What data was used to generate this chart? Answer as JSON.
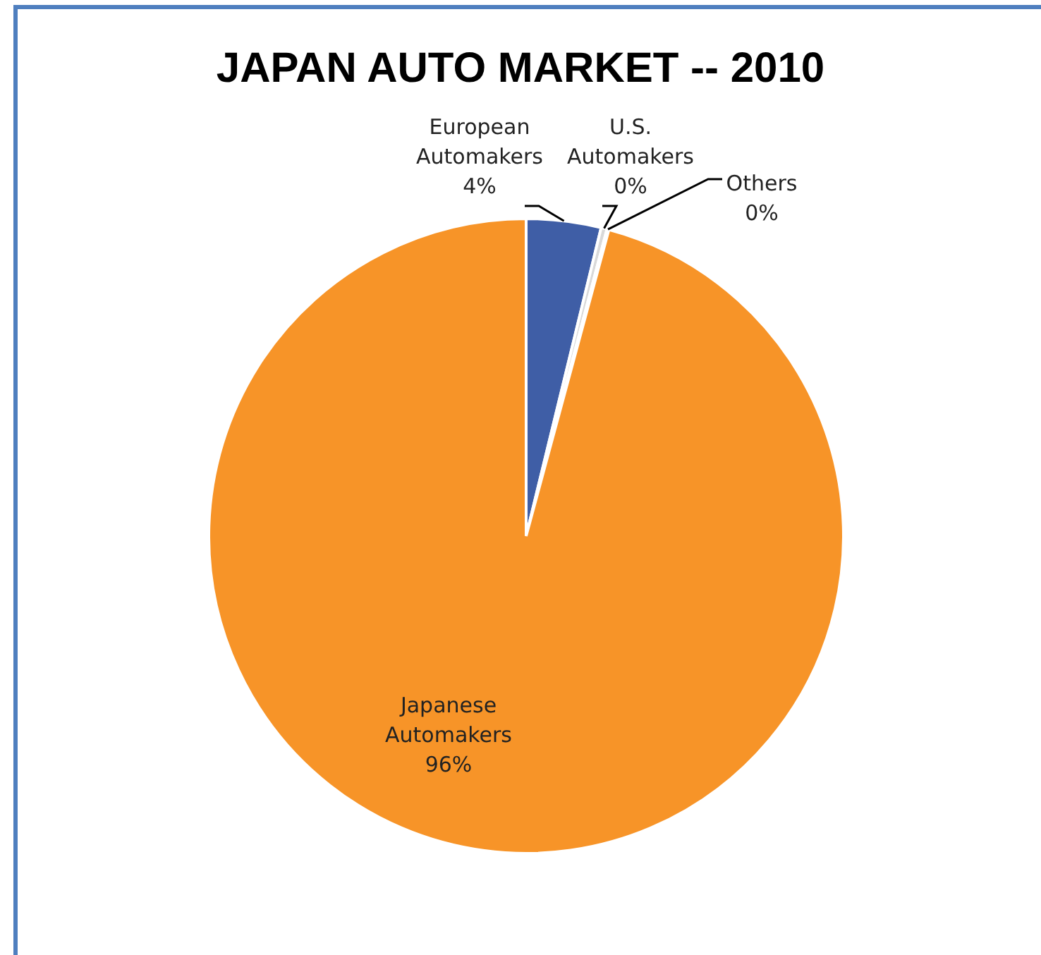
{
  "chart_data": {
    "type": "pie",
    "title": "JAPAN AUTO MARKET -- 2010",
    "categories": [
      "European Automakers",
      "U.S. Automakers",
      "Others",
      "Japanese Automakers"
    ],
    "values": [
      3.8,
      0.3,
      0.1,
      95.8
    ],
    "colors": [
      "#3f5ea6",
      "#d9d9d9",
      "#a5a5a5",
      "#f79428"
    ],
    "value_labels": [
      "4%",
      "0%",
      "0%",
      "96%"
    ]
  }
}
